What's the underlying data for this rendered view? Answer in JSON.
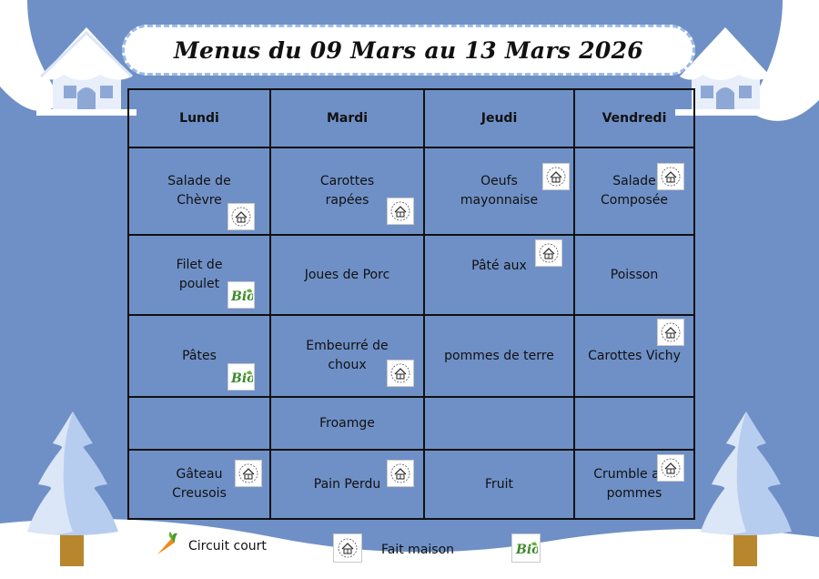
{
  "title": "Menus du 09 Mars au 13 Mars 2026",
  "days": [
    "Lundi",
    "Mardi",
    "Jeudi",
    "Vendredi"
  ],
  "rows": [
    [
      {
        "text": "Salade de Chèvre",
        "badge": "house-icon"
      },
      {
        "text": "Carottes rapées",
        "badge": "house-icon"
      },
      {
        "text": "Oeufs mayonnaise",
        "badge": "house-icon"
      },
      {
        "text": "Salade Composée",
        "badge": "house-icon"
      }
    ],
    [
      {
        "text": "Filet de poulet",
        "badge": "bio-icon"
      },
      {
        "text": "Joues de Porc",
        "badge": ""
      },
      {
        "text": "Pâté aux",
        "badge": "house-icon"
      },
      {
        "text": "Poisson",
        "badge": ""
      }
    ],
    [
      {
        "text": "Pâtes",
        "badge": "bio-icon"
      },
      {
        "text": "Embeurré de choux",
        "badge": "house-icon"
      },
      {
        "text": "pommes de terre",
        "badge": ""
      },
      {
        "text": "Carottes Vichy",
        "badge": "house-icon"
      }
    ],
    [
      {
        "text": "",
        "badge": ""
      },
      {
        "text": "Froamge",
        "badge": ""
      },
      {
        "text": "",
        "badge": ""
      },
      {
        "text": "",
        "badge": ""
      }
    ],
    [
      {
        "text": "Gâteau Creusois",
        "badge": "house-icon"
      },
      {
        "text": "Pain Perdu",
        "badge": "house-icon"
      },
      {
        "text": "Fruit",
        "badge": ""
      },
      {
        "text": "Crumble aux pommes",
        "badge": "house-icon"
      }
    ]
  ],
  "legend": {
    "circuit_court": "Circuit court",
    "fait_maison": "Fait maison",
    "circuit_court_icon": "carrot-icon",
    "fait_maison_icon": "house-icon",
    "bio_icon": "bio-icon"
  },
  "colors": {
    "background": "#6f90c6",
    "snow": "#ffffff",
    "tree": "#b7cdf0",
    "trunk": "#b8862d",
    "bio_green": "#3d8a2a"
  }
}
